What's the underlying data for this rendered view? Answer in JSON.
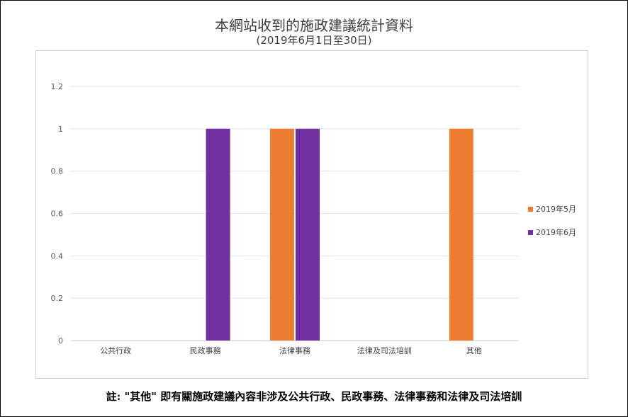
{
  "chart_data": {
    "type": "bar",
    "title": "本網站收到的施政建議統計資料",
    "subtitle": "(2019年6月1日至30日)",
    "categories": [
      "公共行政",
      "民政事務",
      "法律事務",
      "法律及司法培訓",
      "其他"
    ],
    "series": [
      {
        "name": "2019年5月",
        "color": "#ed7d31",
        "values": [
          0,
          0,
          1,
          0,
          1
        ]
      },
      {
        "name": "2019年6月",
        "color": "#7030a0",
        "values": [
          0,
          1,
          1,
          0,
          0
        ]
      }
    ],
    "ylim": [
      0,
      1.2
    ],
    "yticks": [
      "0",
      "0.2",
      "0.4",
      "0.6",
      "0.8",
      "1",
      "1.2"
    ],
    "grid": true,
    "legend_position": "right"
  },
  "footnote": "註: \"其他\" 即有關施政建議內容非涉及公共行政、民政事務、法律事務和法律及司法培訓"
}
